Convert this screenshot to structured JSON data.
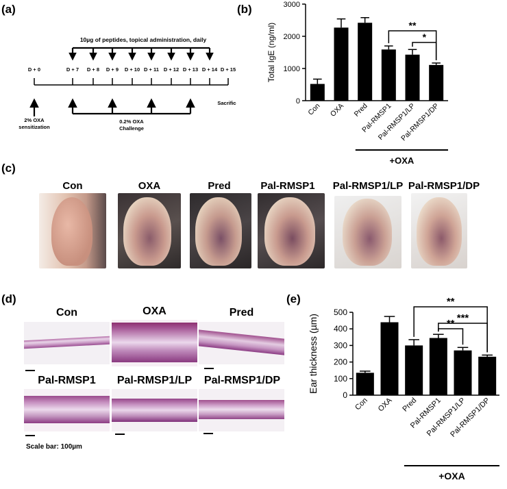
{
  "panels": {
    "a": "(a)",
    "b": "(b)",
    "c": "(c)",
    "d": "(d)",
    "e": "(e)"
  },
  "timeline": {
    "top_text": "10µg of peptides, topical administration, daily",
    "days": [
      "D + 0",
      "D + 7",
      "D + 8",
      "D + 9",
      "D + 10",
      "D + 11",
      "D + 12",
      "D + 13",
      "D + 14",
      "D + 15"
    ],
    "sensitization": [
      "2% OXA",
      "sensitization"
    ],
    "challenge": [
      "0.2% OXA",
      "Challenge"
    ],
    "sacrifice": "Sacrifice"
  },
  "photos": {
    "labels": [
      "Con",
      "OXA",
      "Pred",
      "Pal-RMSP1",
      "Pal-RMSP1/LP",
      "Pal-RMSP1/DP"
    ]
  },
  "histology": {
    "labels": [
      "Con",
      "OXA",
      "Pred",
      "Pal-RMSP1",
      "Pal-RMSP1/LP",
      "Pal-RMSP1/DP"
    ],
    "scale_bar": "Scale bar: 100µm"
  },
  "chart_data": [
    {
      "type": "bar",
      "panel": "b",
      "ylabel": "Total IgE (ng/ml)",
      "ylim": [
        0,
        3000
      ],
      "yticks": [
        0,
        1000,
        2000,
        3000
      ],
      "categories": [
        "Con",
        "OXA",
        "Pred",
        "Pal-RMSP1",
        "Pal-RMSP1/LP",
        "Pal-RMSP1/DP"
      ],
      "values": [
        520,
        2270,
        2420,
        1590,
        1430,
        1110
      ],
      "errors": [
        150,
        270,
        160,
        110,
        160,
        60
      ],
      "group_label": "+OXA",
      "significance": [
        {
          "from": 3,
          "to": 5,
          "label": "**"
        },
        {
          "from": 4,
          "to": 5,
          "label": "*"
        }
      ]
    },
    {
      "type": "bar",
      "panel": "e",
      "ylabel": "Ear thickness (µm)",
      "ylim": [
        0,
        500
      ],
      "yticks": [
        0,
        100,
        200,
        300,
        400,
        500
      ],
      "categories": [
        "Con",
        "OXA",
        "Pred",
        "Pal-RMSP1",
        "Pal-RMSP1/LP",
        "Pal-RMSP1/DP"
      ],
      "values": [
        135,
        440,
        300,
        345,
        270,
        232
      ],
      "errors": [
        10,
        35,
        35,
        22,
        18,
        10
      ],
      "group_label": "+OXA",
      "significance": [
        {
          "from": 2,
          "to": 5,
          "label": "**"
        },
        {
          "from": 3,
          "to": 5,
          "label": "***"
        },
        {
          "from": 3,
          "to": 4,
          "label": "**"
        }
      ]
    }
  ]
}
